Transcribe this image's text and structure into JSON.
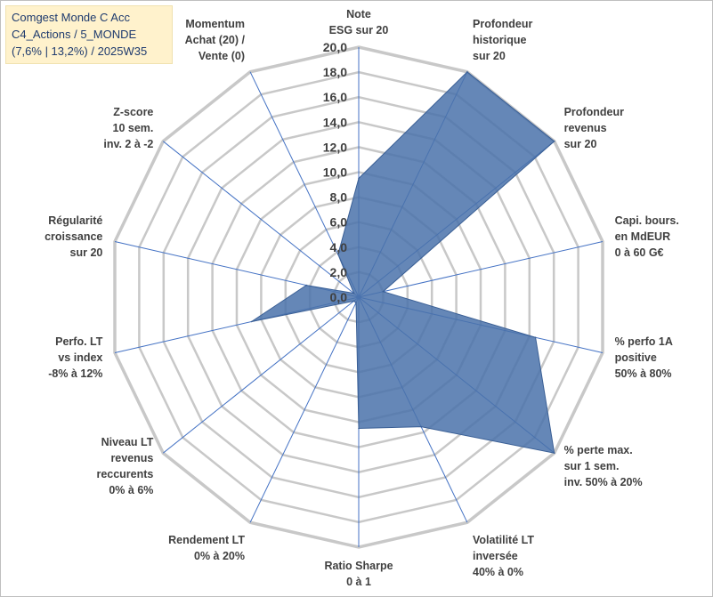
{
  "title_lines": [
    "Comgest Monde C Acc",
    "C4_Actions / 5_MONDE",
    "(7,6% | 13,2%) / 2025W35"
  ],
  "colors": {
    "grid": "#c8c8c8",
    "spoke": "#4472c4",
    "fill": "#4a72aa",
    "stroke": "#3a5f95"
  },
  "chart_data": {
    "type": "radar",
    "rlim": [
      0,
      20
    ],
    "tick_step": 2,
    "tick_labels": [
      "0,0",
      "2,0",
      "4,0",
      "6,0",
      "8,0",
      "10,0",
      "12,0",
      "14,0",
      "16,0",
      "18,0",
      "20,0"
    ],
    "grid": true,
    "axes": [
      [
        "Note",
        "ESG sur 20"
      ],
      [
        "Profondeur",
        "historique",
        "sur 20"
      ],
      [
        "Profondeur",
        "revenus",
        "sur 20"
      ],
      [
        "Capi. bours.",
        "en MdEUR",
        "0 à 60 G€"
      ],
      [
        "% perfo 1A",
        "positive",
        "50% à 80%"
      ],
      [
        "% perte max.",
        "sur 1 sem.",
        "inv. 50% à 20%"
      ],
      [
        "Volatilité LT",
        "inversée",
        "40% à 0%"
      ],
      [
        "Ratio Sharpe",
        "0 à 1"
      ],
      [
        "Rendement LT",
        "0% à 20%"
      ],
      [
        "Niveau LT",
        "revenus",
        "reccurents",
        "0% à 6%"
      ],
      [
        "Perfo. LT",
        "vs index",
        "-8% à 12%"
      ],
      [
        "Régularité",
        "croissance",
        "sur 20"
      ],
      [
        "Z-score",
        "10 sem.",
        "inv. 2 à -2"
      ],
      [
        "Momentum",
        "Achat (20) /",
        "Vente (0)"
      ]
    ],
    "values": [
      9.5,
      20.0,
      20.0,
      2.0,
      14.5,
      20.0,
      11.5,
      10.5,
      0.5,
      0.5,
      8.8,
      4.3,
      0.5,
      3.8
    ]
  }
}
